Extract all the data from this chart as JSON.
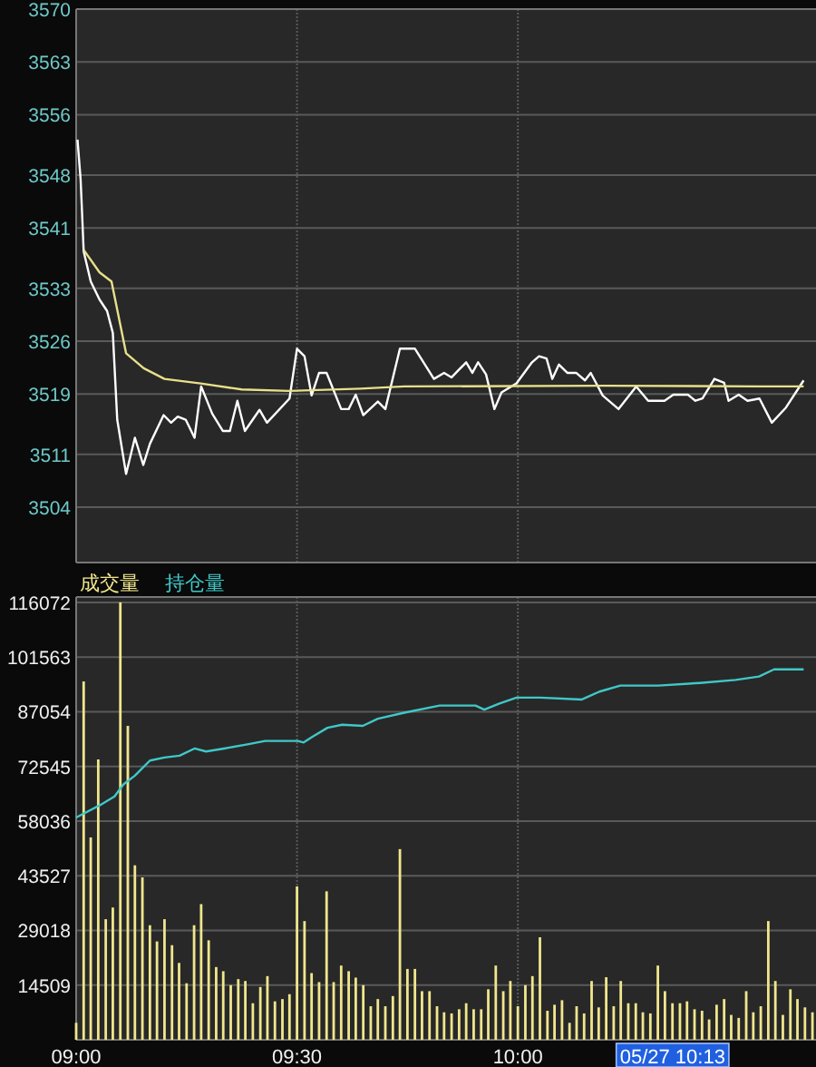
{
  "chart_data": [
    {
      "type": "line",
      "xlim": [
        9,
        10.675
      ],
      "xticks": [
        {
          "value": 9,
          "label": null
        },
        {
          "value": 9.5,
          "label": null
        },
        {
          "value": 10,
          "label": null
        }
      ],
      "ylim": [
        3496.667,
        3570
      ],
      "yticks": [
        3570,
        3563,
        3556,
        3548,
        3541,
        3533,
        3526,
        3519,
        3511,
        3504
      ],
      "grid": true,
      "tick_labels": "y",
      "series": [
        {
          "color": "#ffffff",
          "x": [
            9.003,
            9.01,
            9.013,
            9.017,
            9.033,
            9.053,
            9.07,
            9.083,
            9.093,
            9.113,
            9.133,
            9.152,
            9.167,
            9.198,
            9.215,
            9.23,
            9.248,
            9.268,
            9.283,
            9.308,
            9.332,
            9.348,
            9.365,
            9.382,
            9.415,
            9.432,
            9.483,
            9.5,
            9.517,
            9.533,
            9.55,
            9.567,
            9.6,
            9.617,
            9.633,
            9.65,
            9.683,
            9.7,
            9.733,
            9.767,
            9.81,
            9.833,
            9.85,
            9.883,
            9.897,
            9.91,
            9.928,
            9.947,
            9.963,
            9.997,
            10.032,
            10.048,
            10.065,
            10.078,
            10.093,
            10.112,
            10.132,
            10.152,
            10.165,
            10.192,
            10.228,
            10.268,
            10.295,
            10.332,
            10.352,
            10.385,
            10.402,
            10.418,
            10.445,
            10.467,
            10.477,
            10.5,
            10.52,
            10.547,
            10.575,
            10.607,
            10.647
          ],
          "values": [
            3552.7,
            3547.5,
            3543.5,
            3537.9,
            3533.9,
            3531.5,
            3530,
            3527.1,
            3515.6,
            3508.4,
            3513.2,
            3509.6,
            3512.4,
            3516.2,
            3515.2,
            3516,
            3515.6,
            3513.2,
            3520,
            3516.4,
            3514.1,
            3514.1,
            3518.1,
            3514.1,
            3516.9,
            3515.2,
            3518.4,
            3525,
            3524,
            3518.8,
            3521.8,
            3521.8,
            3517,
            3517,
            3518.9,
            3516.2,
            3518,
            3517,
            3525,
            3525,
            3521,
            3521.8,
            3521.2,
            3523.2,
            3521.8,
            3523.2,
            3521.6,
            3517,
            3519.2,
            3520.4,
            3523.2,
            3524,
            3523.7,
            3521,
            3522.9,
            3521.8,
            3521.8,
            3520.8,
            3521.8,
            3518.8,
            3517,
            3520,
            3518.1,
            3518.1,
            3518.9,
            3518.9,
            3518.1,
            3518.4,
            3521,
            3520.5,
            3518.1,
            3518.9,
            3518.1,
            3518.4,
            3515.2,
            3517.2,
            3520.8
          ]
        },
        {
          "color": "#e8e08a",
          "x": [
            9.017,
            9.053,
            9.08,
            9.113,
            9.153,
            9.2,
            9.282,
            9.375,
            9.482,
            9.643,
            9.743,
            10.192,
            10.547,
            10.647
          ],
          "values": [
            3538.1,
            3535.1,
            3533.9,
            3524.4,
            3522.4,
            3521,
            3520.4,
            3519.6,
            3519.4,
            3519.7,
            3520,
            3520.1,
            3520,
            3520
          ]
        }
      ]
    },
    {
      "type": "bar",
      "xlim": [
        9,
        10.675
      ],
      "xticks": [
        {
          "value": 9,
          "label": "09:00"
        },
        {
          "value": 9.5,
          "label": "09:30"
        },
        {
          "value": 10,
          "label": "10:00"
        }
      ],
      "ylim": [
        0,
        117500
      ],
      "yticks": [
        14509,
        29018,
        43527,
        58036,
        72545,
        87054,
        101563,
        116072
      ],
      "grid": true,
      "legend": "top left",
      "annotations": [
        "05/27 10:13"
      ],
      "series": [
        {
          "name": "成交量",
          "color": "#f0e68c",
          "x": [
            9,
            9.017,
            9.033,
            9.05,
            9.067,
            9.083,
            9.1,
            9.117,
            9.133,
            9.15,
            9.167,
            9.183,
            9.2,
            9.217,
            9.233,
            9.25,
            9.267,
            9.283,
            9.3,
            9.317,
            9.333,
            9.35,
            9.367,
            9.383,
            9.4,
            9.417,
            9.433,
            9.45,
            9.467,
            9.483,
            9.5,
            9.517,
            9.533,
            9.55,
            9.567,
            9.583,
            9.6,
            9.617,
            9.633,
            9.65,
            9.667,
            9.683,
            9.7,
            9.717,
            9.733,
            9.75,
            9.767,
            9.783,
            9.8,
            9.817,
            9.833,
            9.85,
            9.867,
            9.883,
            9.9,
            9.917,
            9.933,
            9.95,
            9.967,
            9.983,
            10,
            10.017,
            10.033,
            10.05,
            10.067,
            10.083,
            10.1,
            10.117,
            10.133,
            10.15,
            10.167,
            10.183,
            10.2,
            10.217,
            10.233,
            10.25,
            10.267,
            10.283,
            10.3,
            10.317,
            10.333,
            10.35,
            10.367,
            10.383,
            10.4,
            10.417,
            10.433,
            10.45,
            10.467,
            10.483,
            10.5,
            10.517,
            10.533,
            10.55,
            10.567,
            10.583,
            10.6,
            10.617,
            10.633,
            10.65,
            10.667
          ],
          "values": [
            4500,
            95100,
            53700,
            74400,
            32000,
            35100,
            116072,
            83300,
            46300,
            43100,
            30400,
            26100,
            32000,
            25100,
            20400,
            15000,
            30400,
            36000,
            26400,
            19300,
            18200,
            14500,
            16100,
            15600,
            9700,
            14000,
            16900,
            10200,
            10800,
            12100,
            40700,
            31500,
            17700,
            15300,
            39400,
            15300,
            19700,
            18200,
            16500,
            14500,
            8900,
            10800,
            8900,
            11600,
            50600,
            18800,
            18800,
            12900,
            12900,
            8900,
            7300,
            7000,
            8100,
            9700,
            8100,
            8100,
            13400,
            19700,
            12900,
            15600,
            8900,
            14500,
            16900,
            27200,
            7700,
            9300,
            10500,
            4500,
            8900,
            7000,
            15600,
            8600,
            16600,
            8900,
            15600,
            9700,
            9700,
            7300,
            7000,
            19700,
            12900,
            9700,
            9700,
            10200,
            8100,
            7700,
            5400,
            9300,
            10800,
            6600,
            5800,
            12900,
            7300,
            8900,
            31500,
            15600,
            6600,
            13400,
            10800,
            8600,
            7300
          ]
        },
        {
          "name": "持仓量",
          "type": "line",
          "color": "#40c8c8",
          "x": [
            9,
            9.053,
            9.087,
            9.107,
            9.133,
            9.167,
            9.2,
            9.234,
            9.268,
            9.294,
            9.335,
            9.388,
            9.428,
            9.502,
            9.515,
            9.535,
            9.569,
            9.602,
            9.649,
            9.683,
            9.743,
            9.823,
            9.904,
            9.924,
            9.957,
            9.997,
            10.051,
            10.145,
            10.185,
            10.232,
            10.318,
            10.412,
            10.493,
            10.546,
            10.58,
            10.647
          ],
          "values": [
            59000,
            62200,
            64600,
            67800,
            70100,
            74100,
            74900,
            75400,
            77300,
            76500,
            77300,
            78400,
            79300,
            79300,
            78900,
            80400,
            82800,
            83600,
            83300,
            85200,
            86800,
            88700,
            88700,
            87600,
            89200,
            90800,
            90800,
            90300,
            92400,
            94000,
            94000,
            94700,
            95500,
            96400,
            98300,
            98300
          ]
        }
      ]
    }
  ]
}
